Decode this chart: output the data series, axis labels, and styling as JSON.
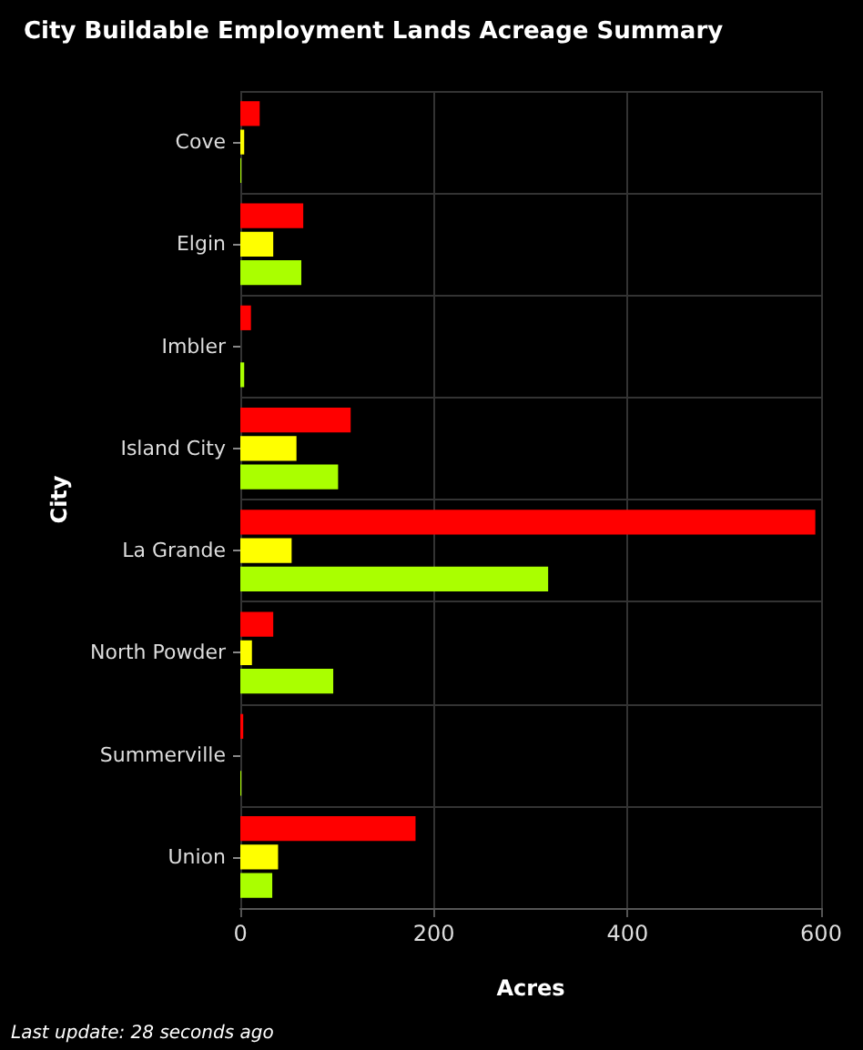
{
  "chart_data": {
    "type": "bar",
    "orientation": "horizontal",
    "title": "City Buildable Employment Lands Acreage Summary",
    "xlabel": "Acres",
    "ylabel": "City",
    "categories": [
      "Cove",
      "Elgin",
      "Imbler",
      "Island City",
      "La Grande",
      "North Powder",
      "Summerville",
      "Union"
    ],
    "series": [
      {
        "color": "#ff0000",
        "values": [
          20,
          65,
          11,
          114,
          594,
          34,
          3,
          181
        ]
      },
      {
        "color": "#ffff00",
        "values": [
          4,
          34,
          0,
          58,
          53,
          12,
          0,
          39
        ]
      },
      {
        "color": "#aaff00",
        "values": [
          1,
          63,
          4,
          101,
          318,
          96,
          1,
          33
        ]
      }
    ],
    "xlim": [
      0,
      600
    ],
    "xticks": [
      0,
      200,
      400,
      600
    ],
    "grid": true,
    "annotations": [
      "Last update: 28 seconds ago"
    ]
  }
}
